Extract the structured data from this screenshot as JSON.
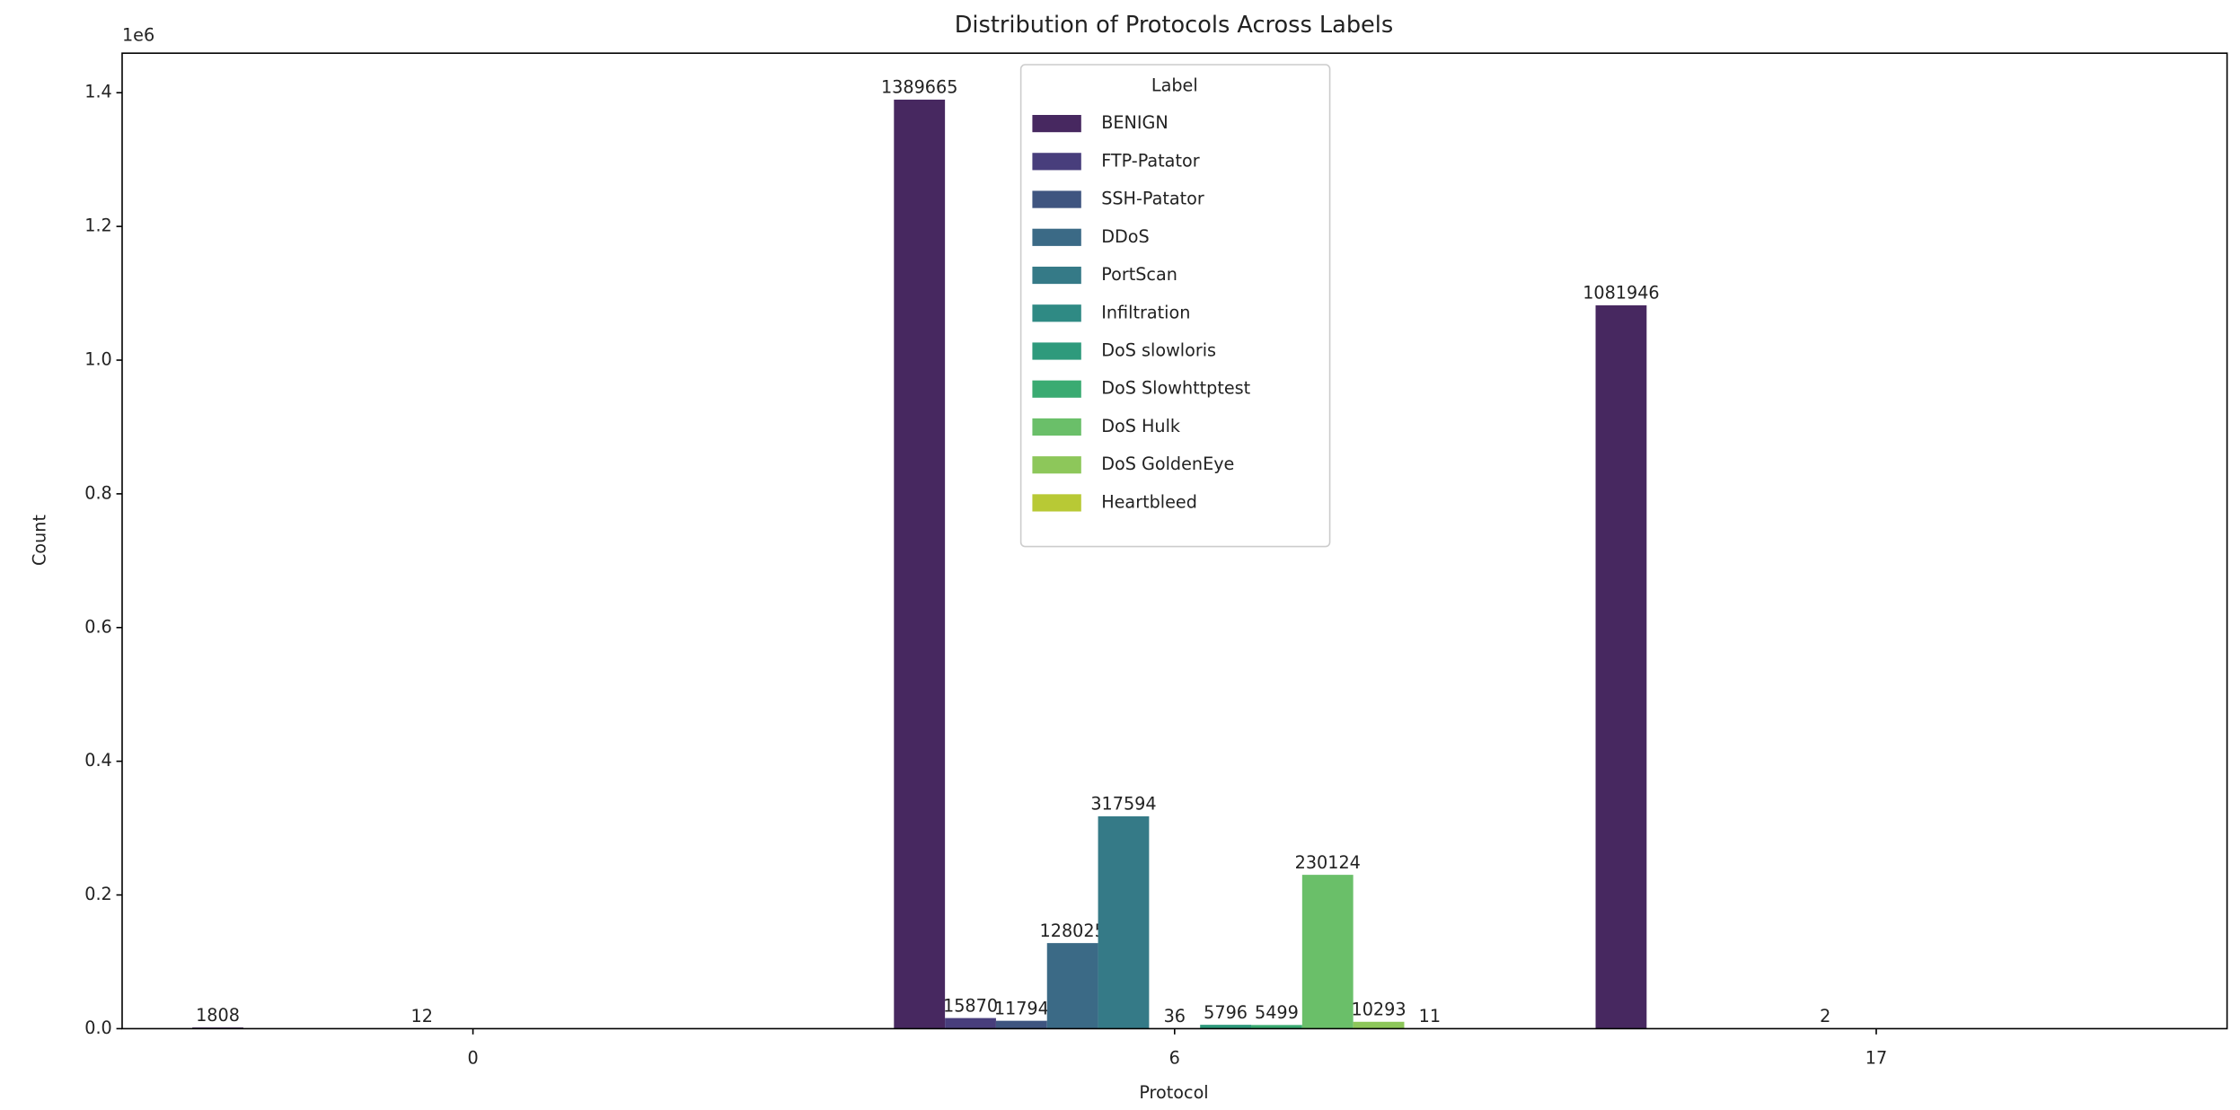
{
  "chart_data": {
    "type": "bar",
    "title": "Distribution of Protocols Across Labels",
    "x_label": "Protocol",
    "y_label": "Count",
    "y_offset_label": "1e6",
    "categories": [
      "0",
      "6",
      "17"
    ],
    "series": [
      {
        "name": "BENIGN",
        "color": "#472860",
        "values": [
          1808,
          1389665,
          1081946
        ]
      },
      {
        "name": "FTP-Patator",
        "color": "#483e7c",
        "values": [
          null,
          15870,
          null
        ]
      },
      {
        "name": "SSH-Patator",
        "color": "#3f5580",
        "values": [
          null,
          11794,
          null
        ]
      },
      {
        "name": "DDoS",
        "color": "#3b6a86",
        "values": [
          null,
          128025,
          null
        ]
      },
      {
        "name": "PortScan",
        "color": "#357a87",
        "values": [
          12,
          317594,
          2
        ]
      },
      {
        "name": "Infiltration",
        "color": "#2f8a84",
        "values": [
          null,
          36,
          null
        ]
      },
      {
        "name": "DoS slowloris",
        "color": "#2e9a7c",
        "values": [
          null,
          5796,
          null
        ]
      },
      {
        "name": "DoS Slowhttptest",
        "color": "#3aab72",
        "values": [
          null,
          5499,
          null
        ]
      },
      {
        "name": "DoS Hulk",
        "color": "#6abf69",
        "values": [
          null,
          230124,
          null
        ]
      },
      {
        "name": "DoS GoldenEye",
        "color": "#8dc75a",
        "values": [
          null,
          10293,
          null
        ]
      },
      {
        "name": "Heartbleed",
        "color": "#b8c935",
        "values": [
          null,
          11,
          null
        ]
      }
    ],
    "legend_title": "Label",
    "legend": "upper center",
    "ylim": [
      0,
      1459148
    ],
    "yticks": [
      {
        "value": 0,
        "label": "0.0"
      },
      {
        "value": 200000,
        "label": "0.2"
      },
      {
        "value": 400000,
        "label": "0.4"
      },
      {
        "value": 600000,
        "label": "0.6"
      },
      {
        "value": 800000,
        "label": "0.8"
      },
      {
        "value": 1000000,
        "label": "1.0"
      },
      {
        "value": 1200000,
        "label": "1.2"
      },
      {
        "value": 1400000,
        "label": "1.4"
      }
    ],
    "grid": false
  }
}
